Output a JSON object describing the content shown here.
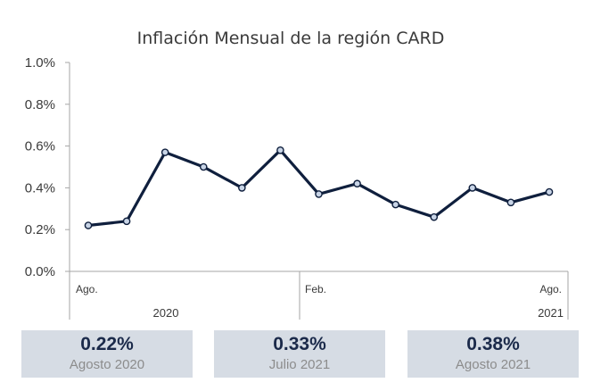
{
  "chart_data": {
    "type": "line",
    "title": "Inflación Mensual de la región CARD",
    "x": [
      "Ago.",
      "",
      "",
      "",
      "",
      "",
      "Feb.",
      "",
      "",
      "",
      "",
      "",
      "Ago."
    ],
    "series": [
      {
        "values": [
          0.22,
          0.24,
          0.57,
          0.5,
          0.4,
          0.58,
          0.37,
          0.42,
          0.32,
          0.26,
          0.4,
          0.33,
          0.38
        ]
      }
    ],
    "ylim": [
      0,
      1.0
    ],
    "yticks": [
      "0.0%",
      "0.2%",
      "0.4%",
      "0.6%",
      "0.8%",
      "1.0%"
    ],
    "year_labels": [
      "2020",
      "2021"
    ],
    "grid": false,
    "colors": {
      "line": "#0f1f3d",
      "marker_fill": "#c8d4e6",
      "axis": "#a6a6a6"
    }
  },
  "summary_cards": [
    {
      "value": "0.22%",
      "label": "Agosto 2020"
    },
    {
      "value": "0.33%",
      "label": "Julio 2021"
    },
    {
      "value": "0.38%",
      "label": "Agosto 2021"
    }
  ]
}
